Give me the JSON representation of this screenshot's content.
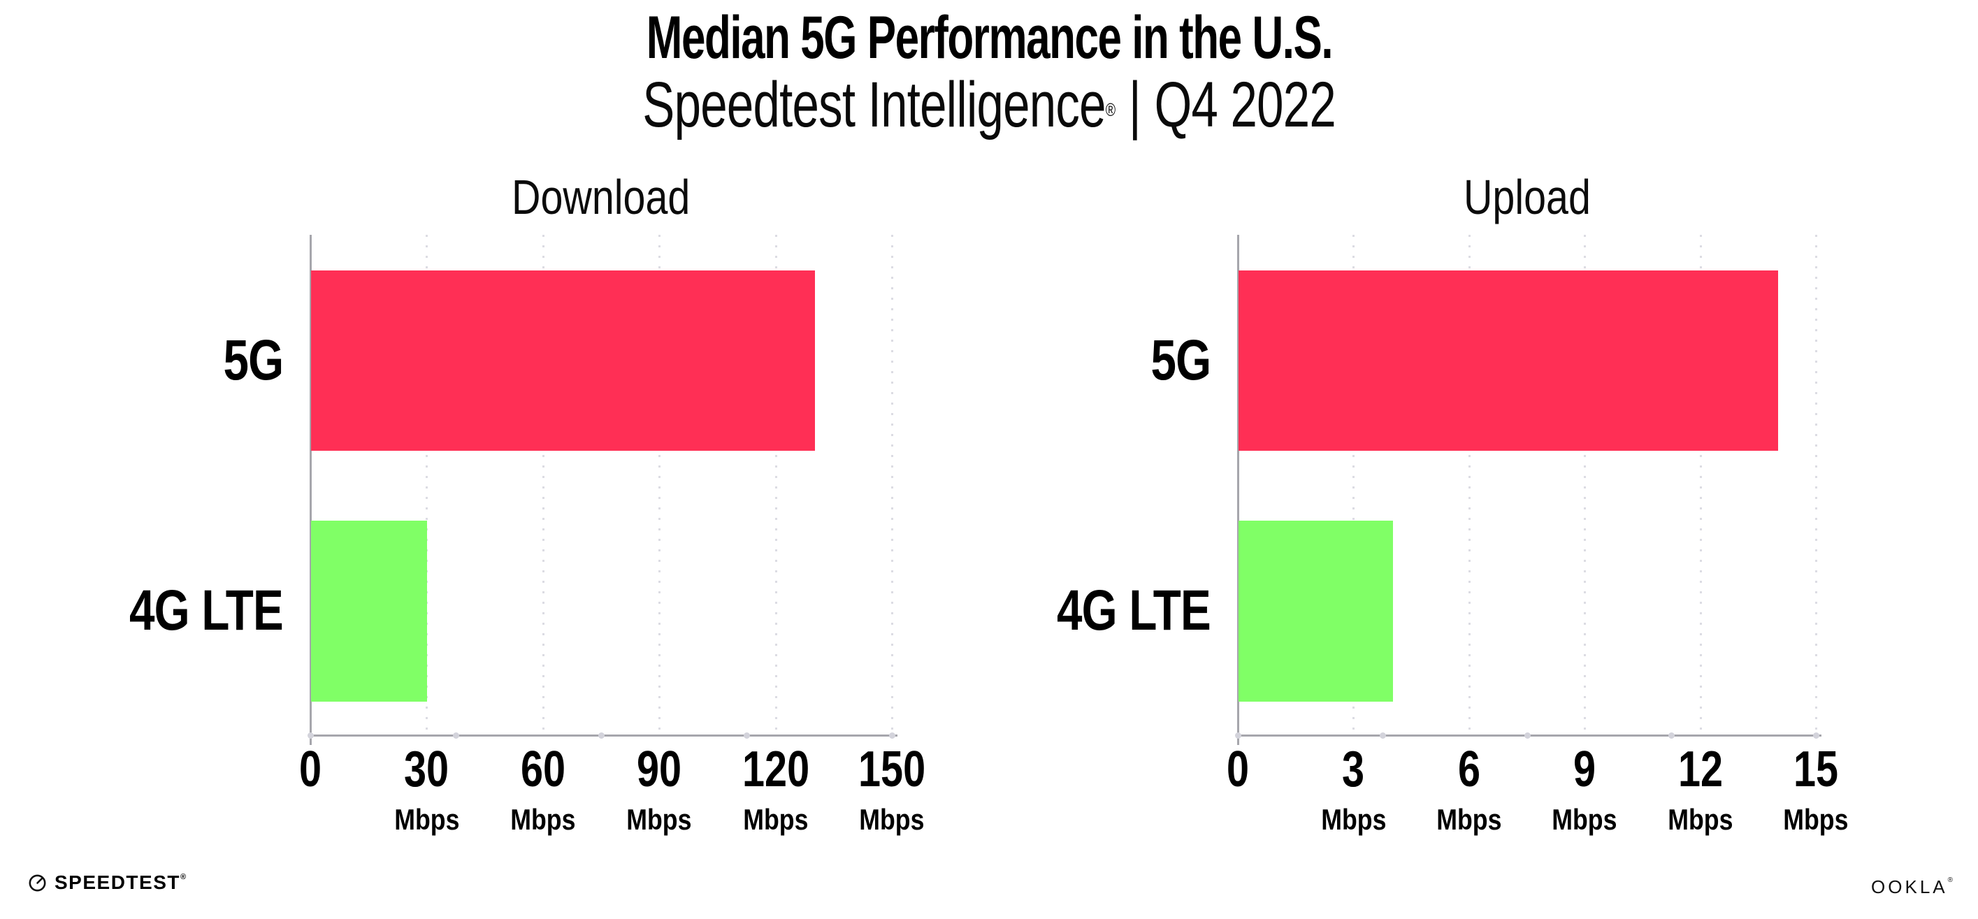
{
  "header": {
    "title": "Median 5G Performance in the U.S.",
    "subtitle_brand": "Speedtest Intelligence",
    "subtitle_reg": "®",
    "subtitle_divider": "|",
    "subtitle_period": "Q4 2022"
  },
  "chart_data": [
    {
      "type": "bar",
      "orientation": "horizontal",
      "title": "Download",
      "categories": [
        "5G",
        "4G LTE"
      ],
      "values": [
        130,
        30
      ],
      "unit": "Mbps",
      "xlim": [
        0,
        150
      ],
      "xticks": [
        0,
        30,
        60,
        90,
        120,
        150
      ],
      "bar_colors": [
        "#FF2F55",
        "#80FF66"
      ],
      "grid": "dotted-vertical-gridlines",
      "legend": "none"
    },
    {
      "type": "bar",
      "orientation": "horizontal",
      "title": "Upload",
      "categories": [
        "5G",
        "4G LTE"
      ],
      "values": [
        14,
        4
      ],
      "unit": "Mbps",
      "xlim": [
        0,
        15
      ],
      "xticks": [
        0,
        3,
        6,
        9,
        12,
        15
      ],
      "bar_colors": [
        "#FF2F55",
        "#80FF66"
      ],
      "grid": "dotted-vertical-gridlines",
      "legend": "none"
    }
  ],
  "footer": {
    "speedtest_label": "SPEEDTEST",
    "speedtest_reg": "®",
    "ookla_label": "OOKLA",
    "ookla_reg": "®"
  },
  "icons": {
    "speedtest-gauge-icon": "circle-with-needle"
  },
  "colors": {
    "bar_5g": "#FF2F55",
    "bar_4g_lte": "#80FF66",
    "axis": "#a6a6ac",
    "gridline": "#dcdce3",
    "text": "#000000",
    "background": "#ffffff"
  }
}
